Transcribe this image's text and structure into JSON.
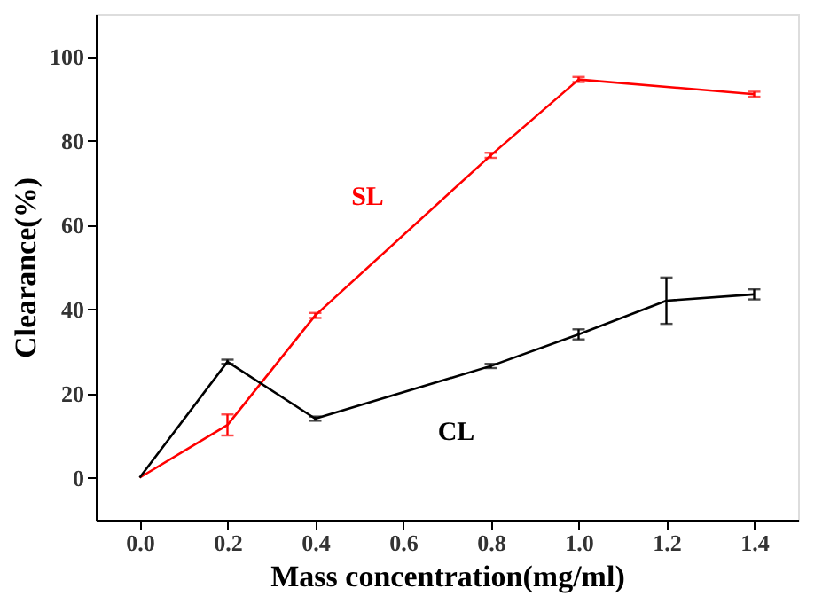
{
  "chart_data": {
    "type": "line",
    "xlabel": "Mass concentration(mg/ml)",
    "ylabel": "Clearance(%)",
    "xlim": [
      -0.1,
      1.5
    ],
    "xticks": [
      {
        "value": 0,
        "label": "0.0"
      },
      {
        "value": 0.2,
        "label": "0.2"
      },
      {
        "value": 0.4,
        "label": "0.4"
      },
      {
        "value": 0.6,
        "label": "0.6"
      },
      {
        "value": 0.8,
        "label": "0.8"
      },
      {
        "value": 1.0,
        "label": "1.0"
      },
      {
        "value": 1.2,
        "label": "1.2"
      },
      {
        "value": 1.4,
        "label": "1.4"
      }
    ],
    "ylim": [
      -10,
      110
    ],
    "yticks": [
      0,
      20,
      40,
      60,
      80,
      100
    ],
    "grid": false,
    "line_style": "solid",
    "series": [
      {
        "name": "SL",
        "color": "#ff0000",
        "x": [
          0,
          0.2,
          0.4,
          0.8,
          1.0,
          1.4
        ],
        "values": [
          0,
          12.5,
          38.5,
          76.5,
          94.5,
          91
        ],
        "errors": [
          null,
          2.5,
          0.6,
          0.6,
          0.6,
          0.6
        ]
      },
      {
        "name": "CL",
        "color": "#000000",
        "x": [
          0,
          0.2,
          0.4,
          0.8,
          1.0,
          1.2,
          1.4
        ],
        "values": [
          0,
          27.5,
          14,
          26.5,
          34,
          42,
          43.5
        ],
        "errors": [
          null,
          0.5,
          0.5,
          0.5,
          1.2,
          5.5,
          1.2
        ]
      }
    ]
  }
}
